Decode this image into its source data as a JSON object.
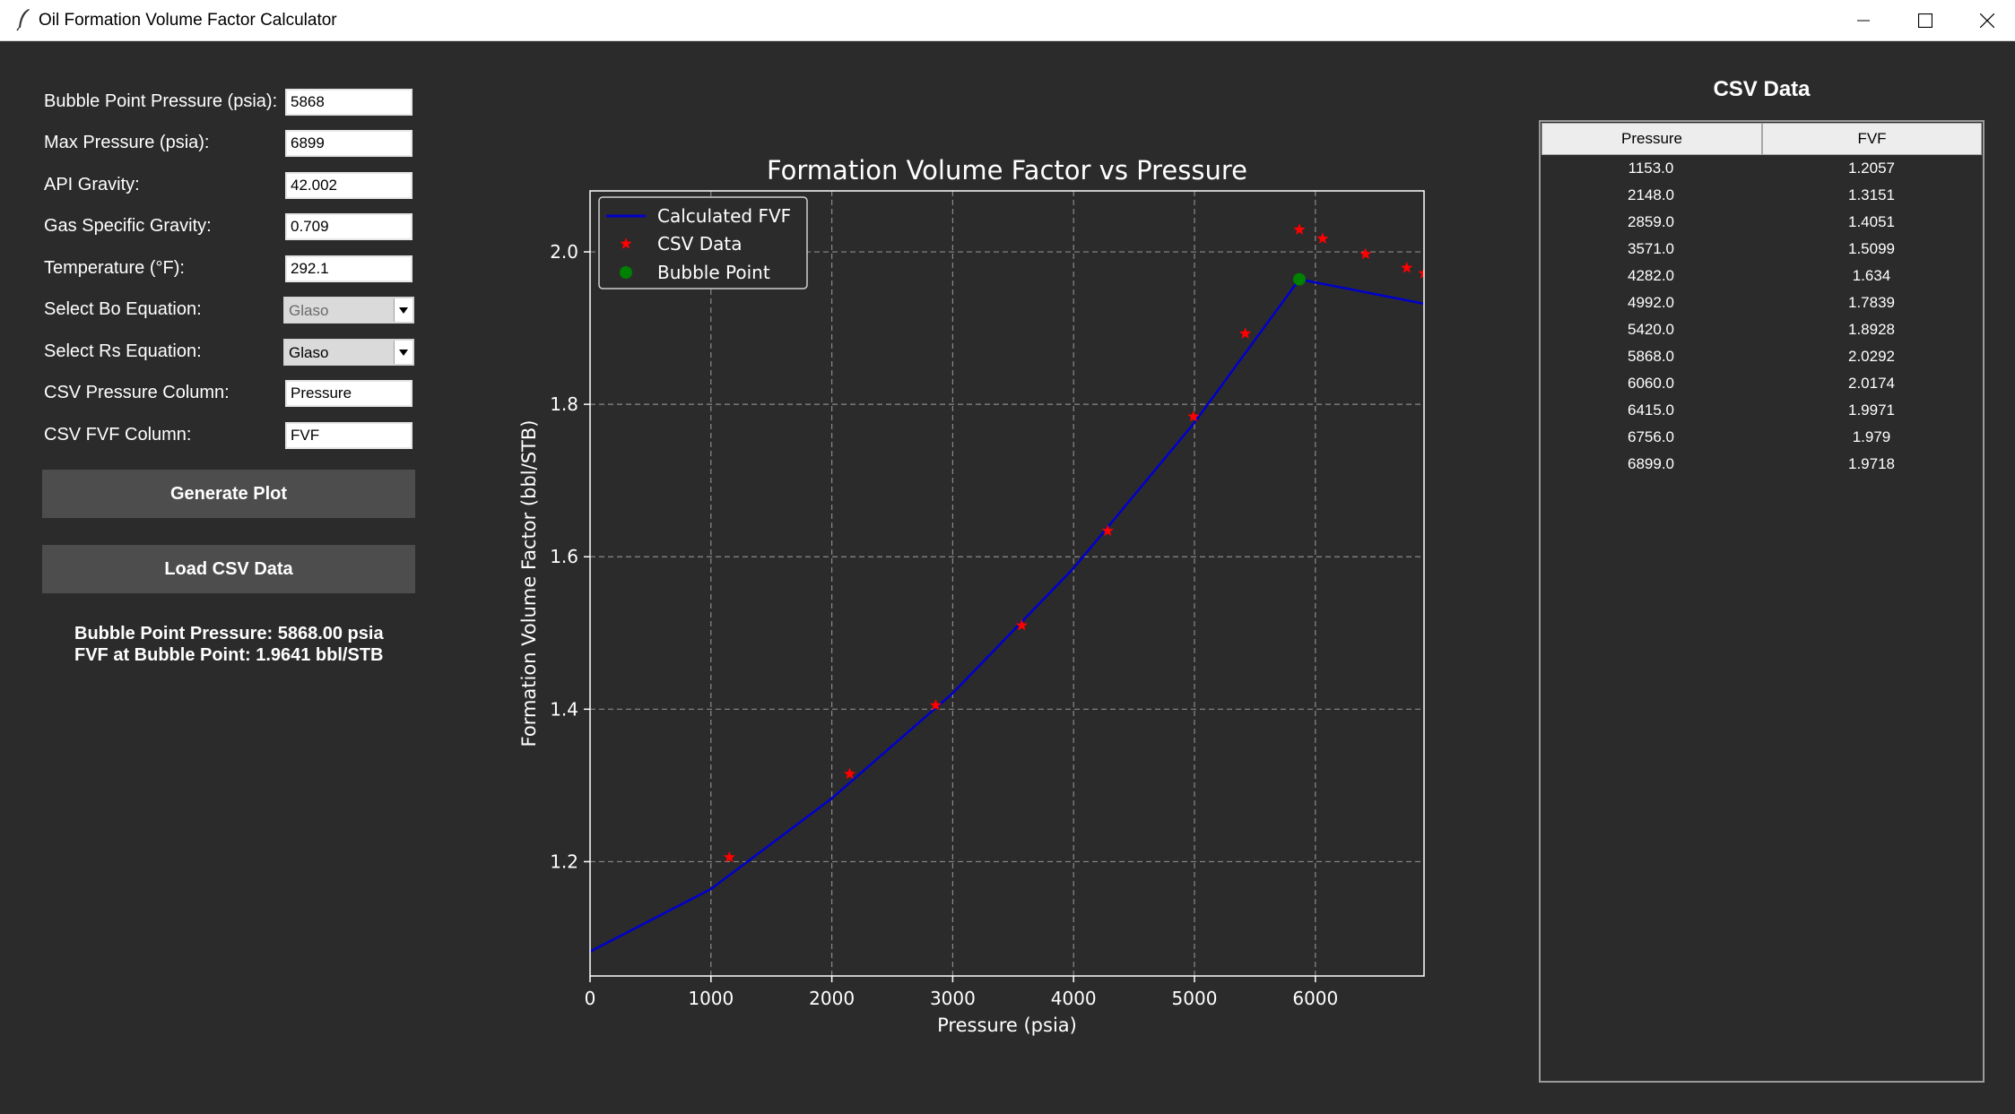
{
  "window": {
    "title": "Oil Formation Volume Factor Calculator",
    "icon": "feather-icon",
    "controls": [
      "minimize-icon",
      "maximize-icon",
      "close-icon"
    ]
  },
  "inputs": {
    "bubble_point": {
      "label": "Bubble Point Pressure (psia):",
      "value": "5868"
    },
    "max_pressure": {
      "label": "Max Pressure (psia):",
      "value": "6899"
    },
    "api_gravity": {
      "label": "API Gravity:",
      "value": "42.002"
    },
    "gas_sg": {
      "label": "Gas Specific Gravity:",
      "value": "0.709"
    },
    "temperature": {
      "label": "Temperature (°F):",
      "value": "292.1"
    },
    "bo_equation": {
      "label": "Select Bo Equation:",
      "value": "Glaso"
    },
    "rs_equation": {
      "label": "Select Rs Equation:",
      "value": "Glaso"
    },
    "csv_pressure_col": {
      "label": "CSV Pressure Column:",
      "value": "Pressure"
    },
    "csv_fvf_col": {
      "label": "CSV FVF Column:",
      "value": "FVF"
    }
  },
  "buttons": {
    "generate": "Generate Plot",
    "load_csv": "Load CSV Data"
  },
  "results": {
    "line1": "Bubble Point Pressure: 5868.00 psia",
    "line2": "FVF at Bubble Point: 1.9641 bbl/STB"
  },
  "csv": {
    "title": "CSV Data",
    "headers": [
      "Pressure",
      "FVF"
    ],
    "rows": [
      [
        "1153.0",
        "1.2057"
      ],
      [
        "2148.0",
        "1.3151"
      ],
      [
        "2859.0",
        "1.4051"
      ],
      [
        "3571.0",
        "1.5099"
      ],
      [
        "4282.0",
        "1.634"
      ],
      [
        "4992.0",
        "1.7839"
      ],
      [
        "5420.0",
        "1.8928"
      ],
      [
        "5868.0",
        "2.0292"
      ],
      [
        "6060.0",
        "2.0174"
      ],
      [
        "6415.0",
        "1.9971"
      ],
      [
        "6756.0",
        "1.979"
      ],
      [
        "6899.0",
        "1.9718"
      ]
    ]
  },
  "chart_data": {
    "type": "line",
    "title": "Formation Volume Factor vs Pressure",
    "xlabel": "Pressure (psia)",
    "ylabel": "Formation Volume Factor (bbl/STB)",
    "xlim": [
      0,
      6899
    ],
    "ylim": [
      1.05,
      2.08
    ],
    "xticks": [
      0,
      1000,
      2000,
      3000,
      4000,
      5000,
      6000
    ],
    "yticks": [
      1.2,
      1.4,
      1.6,
      1.8,
      2.0
    ],
    "grid": true,
    "legend_position": "top-left",
    "series": [
      {
        "name": "Calculated FVF",
        "kind": "line",
        "color": "#0000cc",
        "x": [
          0,
          1000,
          2000,
          3000,
          4000,
          5000,
          5868,
          6899
        ],
        "y": [
          1.082,
          1.164,
          1.283,
          1.421,
          1.585,
          1.776,
          1.9641,
          1.932
        ]
      },
      {
        "name": "CSV Data",
        "kind": "scatter",
        "marker": "star",
        "color": "#ff0000",
        "x": [
          1153,
          2148,
          2859,
          3571,
          4282,
          4992,
          5420,
          5868,
          6060,
          6415,
          6756,
          6899
        ],
        "y": [
          1.2057,
          1.3151,
          1.4051,
          1.5099,
          1.634,
          1.7839,
          1.8928,
          2.0292,
          2.0174,
          1.9971,
          1.979,
          1.9718
        ]
      },
      {
        "name": "Bubble Point",
        "kind": "scatter",
        "marker": "circle",
        "color": "#008000",
        "x": [
          5868
        ],
        "y": [
          1.9641
        ]
      }
    ]
  }
}
